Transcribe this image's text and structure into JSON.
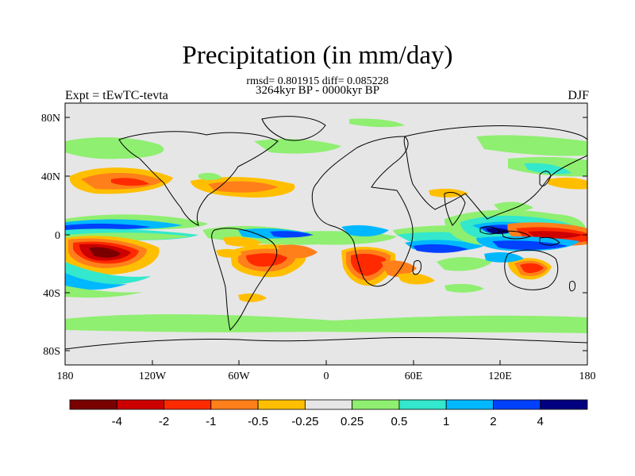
{
  "title": "Precipitation (in mm/day)",
  "subtitle": "rmsd= 0.801915 diff= 0.085228",
  "period": "3264kyr BP - 0000kyr BP",
  "experiment_label": "Expt = tEwTC-tevta",
  "season": "DJF",
  "x_ticks": [
    "180",
    "120W",
    "60W",
    "0",
    "60E",
    "120E",
    "180"
  ],
  "y_ticks": [
    "80N",
    "40N",
    "0",
    "40S",
    "80S"
  ],
  "colorbar": {
    "colors": [
      "#7a0000",
      "#cc0000",
      "#ff2a00",
      "#ff7f1a",
      "#ffbf00",
      "#e6e6e6",
      "#8fef70",
      "#33e8cc",
      "#00b8ff",
      "#0040ff",
      "#000080"
    ],
    "labels": [
      "-4",
      "-2",
      "-1",
      "-0.5",
      "-0.25",
      "0.25",
      "0.5",
      "1",
      "2",
      "4"
    ]
  }
}
